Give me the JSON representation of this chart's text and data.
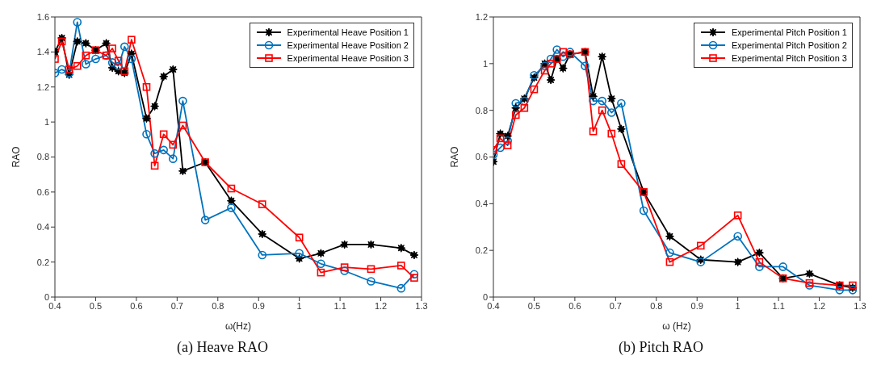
{
  "chart_data": [
    {
      "type": "line",
      "title": "(a) Heave RAO",
      "xlabel": "ω(Hz)",
      "ylabel": "RAO",
      "xlim": [
        0.4,
        1.3
      ],
      "xticks": [
        0.4,
        0.5,
        0.6,
        0.7,
        0.8,
        0.9,
        1,
        1.1,
        1.2,
        1.3
      ],
      "ylim": [
        0,
        1.6
      ],
      "yticks": [
        0,
        0.2,
        0.4,
        0.6,
        0.8,
        1,
        1.2,
        1.4,
        1.6
      ],
      "legend": "top right",
      "grid": false,
      "line_style": "solid",
      "x": [
        0.4,
        0.417,
        0.435,
        0.455,
        0.476,
        0.5,
        0.526,
        0.541,
        0.556,
        0.571,
        0.588,
        0.625,
        0.645,
        0.667,
        0.69,
        0.714,
        0.769,
        0.833,
        0.909,
        1.0,
        1.053,
        1.111,
        1.176,
        1.25,
        1.282
      ],
      "series": [
        {
          "name": "Experimental Heave Position 1",
          "color": "#000000",
          "marker": "star",
          "values": [
            1.4,
            1.48,
            1.27,
            1.46,
            1.45,
            1.41,
            1.45,
            1.31,
            1.29,
            1.28,
            1.39,
            1.02,
            1.09,
            1.26,
            1.3,
            0.72,
            0.77,
            0.55,
            0.36,
            0.22,
            0.25,
            0.3,
            0.3,
            0.28,
            0.24
          ]
        },
        {
          "name": "Experimental Heave Position 2",
          "color": "#0072bd",
          "marker": "circle",
          "values": [
            1.28,
            1.3,
            1.28,
            1.57,
            1.33,
            1.36,
            1.38,
            1.34,
            1.32,
            1.43,
            1.36,
            0.93,
            0.82,
            0.84,
            0.79,
            1.12,
            0.44,
            0.51,
            0.24,
            0.25,
            0.19,
            0.15,
            0.09,
            0.05,
            0.13
          ]
        },
        {
          "name": "Experimental Heave Position 3",
          "color": "#ff0000",
          "marker": "square",
          "values": [
            1.36,
            1.46,
            1.3,
            1.32,
            1.38,
            1.41,
            1.38,
            1.42,
            1.35,
            1.29,
            1.47,
            1.2,
            0.75,
            0.93,
            0.87,
            0.98,
            0.77,
            0.62,
            0.53,
            0.34,
            0.14,
            0.17,
            0.16,
            0.18,
            0.11
          ]
        }
      ]
    },
    {
      "type": "line",
      "title": "(b) Pitch RAO",
      "xlabel": "ω (Hz)",
      "ylabel": "RAO",
      "xlim": [
        0.4,
        1.3
      ],
      "xticks": [
        0.4,
        0.5,
        0.6,
        0.7,
        0.8,
        0.9,
        1,
        1.1,
        1.2,
        1.3
      ],
      "ylim": [
        0,
        1.2
      ],
      "yticks": [
        0,
        0.2,
        0.4,
        0.6,
        0.8,
        1,
        1.2
      ],
      "legend": "top right",
      "grid": false,
      "line_style": "solid",
      "x": [
        0.4,
        0.417,
        0.435,
        0.455,
        0.476,
        0.5,
        0.526,
        0.541,
        0.556,
        0.571,
        0.588,
        0.625,
        0.645,
        0.667,
        0.69,
        0.714,
        0.769,
        0.833,
        0.909,
        1.0,
        1.053,
        1.111,
        1.176,
        1.25,
        1.282
      ],
      "series": [
        {
          "name": "Experimental Pitch Position 1",
          "color": "#000000",
          "marker": "star",
          "values": [
            0.58,
            0.7,
            0.69,
            0.81,
            0.85,
            0.94,
            1.0,
            0.93,
            1.02,
            0.98,
            1.04,
            1.05,
            0.86,
            1.03,
            0.85,
            0.72,
            0.45,
            0.26,
            0.16,
            0.15,
            0.19,
            0.08,
            0.1,
            0.05,
            0.04
          ]
        },
        {
          "name": "Experimental Pitch Position 2",
          "color": "#0072bd",
          "marker": "circle",
          "values": [
            0.61,
            0.64,
            0.67,
            0.83,
            0.84,
            0.95,
            0.99,
            1.02,
            1.06,
            1.03,
            1.05,
            0.99,
            0.84,
            0.84,
            0.79,
            0.83,
            0.37,
            0.19,
            0.15,
            0.26,
            0.13,
            0.13,
            0.05,
            0.03,
            0.03
          ]
        },
        {
          "name": "Experimental Pitch Position 3",
          "color": "#ff0000",
          "marker": "square",
          "values": [
            0.63,
            0.68,
            0.65,
            0.78,
            0.81,
            0.89,
            0.97,
            1.0,
            1.02,
            1.05,
            1.04,
            1.05,
            0.71,
            0.8,
            0.7,
            0.57,
            0.45,
            0.15,
            0.22,
            0.35,
            0.15,
            0.08,
            0.06,
            0.05,
            0.05
          ]
        }
      ]
    }
  ]
}
